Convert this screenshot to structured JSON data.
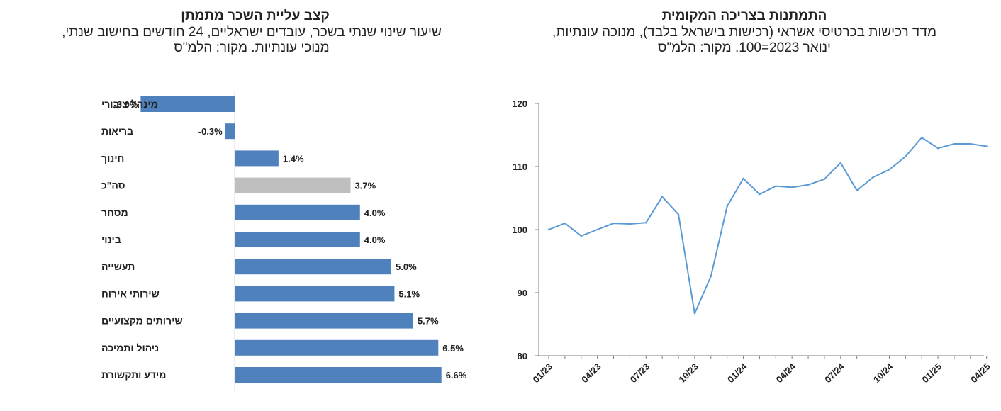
{
  "chart_data": [
    {
      "type": "bar",
      "orientation": "horizontal",
      "title": "קצב עליית השכר מתמתן",
      "subtitle_lines": [
        "שיעור שינוי שנתי בשכר, עובדים ישראליים, 24 חודשים בחישוב שנתי,",
        "מנוכי עונתיות. מקור: הלמ\"ס"
      ],
      "categories": [
        "מינהל ציבורי",
        "בריאות",
        "חינוך",
        "סה\"כ",
        "מסחר",
        "בינוי",
        "תעשייה",
        "שירותי אירוח",
        "שירותים מקצועיים",
        "ניהול ותמיכה",
        "מידע ותקשורת"
      ],
      "values": [
        -3.0,
        -0.3,
        1.4,
        3.7,
        4.0,
        4.0,
        5.0,
        5.1,
        5.7,
        6.5,
        6.6
      ],
      "value_labels": [
        "-3.0%",
        "-0.3%",
        "1.4%",
        "3.7%",
        "4.0%",
        "4.0%",
        "5.0%",
        "5.1%",
        "5.7%",
        "6.5%",
        "6.6%"
      ],
      "colors": [
        "#4f81bd",
        "#4f81bd",
        "#4f81bd",
        "#bfbfbf",
        "#4f81bd",
        "#4f81bd",
        "#4f81bd",
        "#4f81bd",
        "#4f81bd",
        "#4f81bd",
        "#4f81bd"
      ],
      "xlim": [
        -3.5,
        7.0
      ],
      "grid": false
    },
    {
      "type": "line",
      "title": "התמתנות בצריכה המקומית",
      "subtitle_lines": [
        "מדד רכישות בכרטיסי אשראי (רכישות בישראל בלבד), מנוכה עונתיות,",
        "ינואר 2023=100. מקור: הלמ\"ס"
      ],
      "x": [
        "2023-01",
        "2023-02",
        "2023-03",
        "2023-04",
        "2023-05",
        "2023-06",
        "2023-07",
        "2023-08",
        "2023-09",
        "2023-10",
        "2023-11",
        "2023-12",
        "2024-01",
        "2024-02",
        "2024-03",
        "2024-04",
        "2024-05",
        "2024-06",
        "2024-07",
        "2024-08",
        "2024-09",
        "2024-10",
        "2024-11",
        "2024-12",
        "2025-01",
        "2025-02",
        "2025-03",
        "2025-04"
      ],
      "values": [
        100.0,
        101.0,
        99.0,
        100.0,
        101.0,
        100.9,
        101.1,
        105.2,
        102.4,
        86.7,
        92.6,
        103.7,
        108.1,
        105.6,
        106.9,
        106.7,
        107.1,
        108.0,
        110.6,
        106.2,
        108.3,
        109.5,
        111.6,
        114.6,
        112.9,
        113.6,
        113.6,
        113.2
      ],
      "x_tick_labels": [
        "01/23",
        "04/23",
        "07/23",
        "10/23",
        "01/24",
        "04/24",
        "07/24",
        "10/24",
        "01/25",
        "04/25"
      ],
      "y_ticks": [
        80,
        90,
        100,
        110,
        120
      ],
      "ylim": [
        80,
        120
      ],
      "line_color": "#5b9bd5",
      "grid": false
    }
  ]
}
